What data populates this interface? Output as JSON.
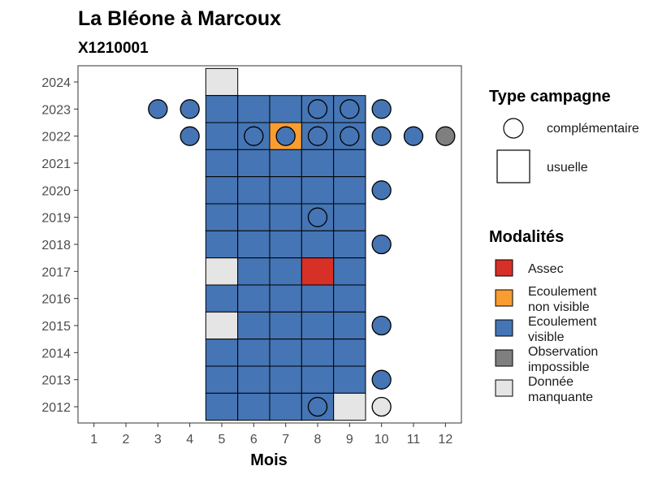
{
  "chart_data": {
    "type": "heatmap",
    "title": "La Bléone à Marcoux",
    "subtitle": "X1210001",
    "xlabel": "Mois",
    "ylabel": "",
    "x_ticks": [
      1,
      2,
      3,
      4,
      5,
      6,
      7,
      8,
      9,
      10,
      11,
      12
    ],
    "y_ticks": [
      2012,
      2013,
      2014,
      2015,
      2016,
      2017,
      2018,
      2019,
      2020,
      2021,
      2022,
      2023,
      2024
    ],
    "xlim": [
      0.5,
      12.5
    ],
    "ylim": [
      2011.4,
      2024.6
    ],
    "grid": false,
    "legend_position": "right",
    "shape_legend": {
      "title": "Type campagne",
      "entries": [
        {
          "key": "complementaire",
          "label": "complémentaire",
          "shape": "circle"
        },
        {
          "key": "usuelle",
          "label": "usuelle",
          "shape": "square"
        }
      ]
    },
    "color_legend": {
      "title": "Modalités",
      "entries": [
        {
          "key": "assec",
          "label": "Assec",
          "color": "#d73027"
        },
        {
          "key": "ecnv",
          "label": "Ecoulement non visible",
          "color": "#f99d31"
        },
        {
          "key": "ecv",
          "label": "Ecoulement visible",
          "color": "#4575b4"
        },
        {
          "key": "obs",
          "label": "Observation impossible",
          "color": "#7f7f7f"
        },
        {
          "key": "nd",
          "label": "Donnée manquante",
          "color": "#e5e5e5"
        }
      ]
    },
    "usuelle": [
      {
        "year": 2024,
        "months": [
          5
        ],
        "status": "nd"
      },
      {
        "year": 2023,
        "months": [
          5,
          6,
          7,
          8,
          9
        ],
        "status": "ecv"
      },
      {
        "year": 2022,
        "months": [
          5,
          6,
          8,
          9
        ],
        "status": "ecv"
      },
      {
        "year": 2022,
        "months": [
          7
        ],
        "status": "ecnv"
      },
      {
        "year": 2021,
        "months": [
          5,
          6,
          7,
          8,
          9
        ],
        "status": "ecv"
      },
      {
        "year": 2020,
        "months": [
          5,
          6,
          7,
          8,
          9
        ],
        "status": "ecv"
      },
      {
        "year": 2019,
        "months": [
          5,
          6,
          7,
          8,
          9
        ],
        "status": "ecv"
      },
      {
        "year": 2018,
        "months": [
          5,
          6,
          7,
          8,
          9
        ],
        "status": "ecv"
      },
      {
        "year": 2017,
        "months": [
          5
        ],
        "status": "nd"
      },
      {
        "year": 2017,
        "months": [
          6,
          7,
          9
        ],
        "status": "ecv"
      },
      {
        "year": 2017,
        "months": [
          8
        ],
        "status": "assec"
      },
      {
        "year": 2016,
        "months": [
          5,
          6,
          7,
          8,
          9
        ],
        "status": "ecv"
      },
      {
        "year": 2015,
        "months": [
          5
        ],
        "status": "nd"
      },
      {
        "year": 2015,
        "months": [
          6,
          7,
          8,
          9
        ],
        "status": "ecv"
      },
      {
        "year": 2014,
        "months": [
          5,
          6,
          7,
          8,
          9
        ],
        "status": "ecv"
      },
      {
        "year": 2013,
        "months": [
          5,
          6,
          7,
          8,
          9
        ],
        "status": "ecv"
      },
      {
        "year": 2012,
        "months": [
          5,
          6,
          7,
          8
        ],
        "status": "ecv"
      },
      {
        "year": 2012,
        "months": [
          9
        ],
        "status": "nd"
      }
    ],
    "complementaire": [
      {
        "year": 2023,
        "months": [
          3,
          4,
          8,
          9,
          10
        ],
        "status": "ecv"
      },
      {
        "year": 2022,
        "months": [
          4,
          6,
          7,
          8,
          9,
          10,
          11
        ],
        "status": "ecv"
      },
      {
        "year": 2022,
        "months": [
          12
        ],
        "status": "obs"
      },
      {
        "year": 2020,
        "months": [
          10
        ],
        "status": "ecv"
      },
      {
        "year": 2019,
        "months": [
          8
        ],
        "status": "ecv"
      },
      {
        "year": 2018,
        "months": [
          10
        ],
        "status": "ecv"
      },
      {
        "year": 2015,
        "months": [
          10
        ],
        "status": "ecv"
      },
      {
        "year": 2013,
        "months": [
          10
        ],
        "status": "ecv"
      },
      {
        "year": 2012,
        "months": [
          8
        ],
        "status": "ecv"
      },
      {
        "year": 2012,
        "months": [
          10
        ],
        "status": "nd"
      }
    ]
  }
}
